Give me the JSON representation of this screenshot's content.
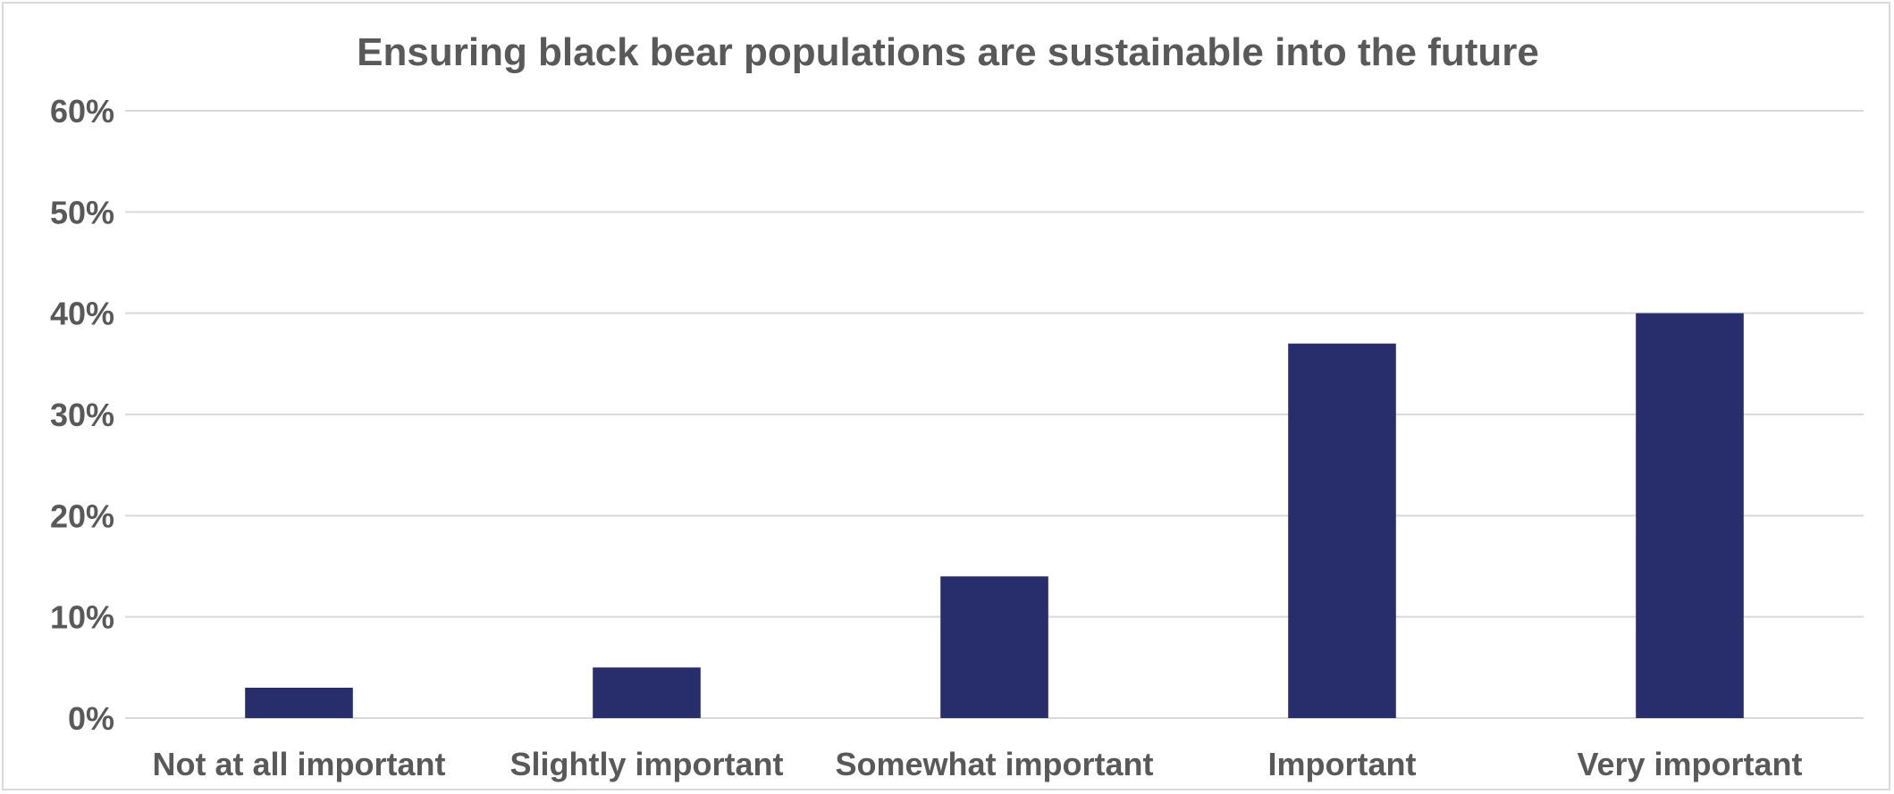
{
  "chart_data": {
    "type": "bar",
    "title": "Ensuring black bear populations are sustainable into the future",
    "xlabel": "",
    "ylabel": "",
    "categories": [
      "Not at all important",
      "Slightly important",
      "Somewhat important",
      "Important",
      "Very important"
    ],
    "values": [
      3,
      5,
      14,
      37,
      40
    ],
    "ylim": [
      0,
      60
    ],
    "yticks": [
      0,
      10,
      20,
      30,
      40,
      50,
      60
    ],
    "ytick_labels": [
      "0%",
      "10%",
      "20%",
      "30%",
      "40%",
      "50%",
      "60%"
    ],
    "grid": true,
    "legend": "none",
    "colors": {
      "bar": "#282d6b",
      "grid": "#d9d9d9",
      "text": "#595959"
    }
  }
}
